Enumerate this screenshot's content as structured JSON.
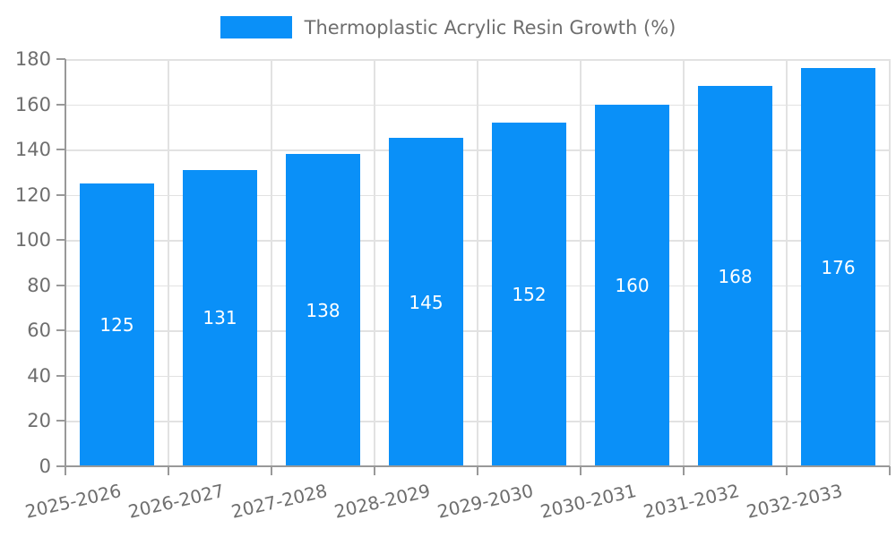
{
  "legend": {
    "label": "Thermoplastic Acrylic Resin Growth (%)"
  },
  "colors": {
    "bar": "#0a90f8",
    "axis": "#999999",
    "grid": "#e2e2e2",
    "tick_text": "#6e6e6e",
    "value_label_text": "#ffffff",
    "background": "#ffffff"
  },
  "chart_data": {
    "type": "bar",
    "title": "Thermoplastic Acrylic Resin Growth (%)",
    "categories": [
      "2025-2026",
      "2026-2027",
      "2027-2028",
      "2028-2029",
      "2029-2030",
      "2030-2031",
      "2031-2032",
      "2032-2033"
    ],
    "values": [
      125,
      131,
      138,
      145,
      152,
      160,
      168,
      176
    ],
    "value_labels": [
      "125",
      "131",
      "138",
      "145",
      "152",
      "160",
      "168",
      "176"
    ],
    "xlabel": "",
    "ylabel": "",
    "ylim": [
      0,
      180
    ],
    "yticks": [
      0,
      20,
      40,
      60,
      80,
      100,
      120,
      140,
      160,
      180
    ],
    "grid": true,
    "legend_position": "top-center",
    "x_label_rotation_deg": -13,
    "value_label_position": "center-inside"
  }
}
